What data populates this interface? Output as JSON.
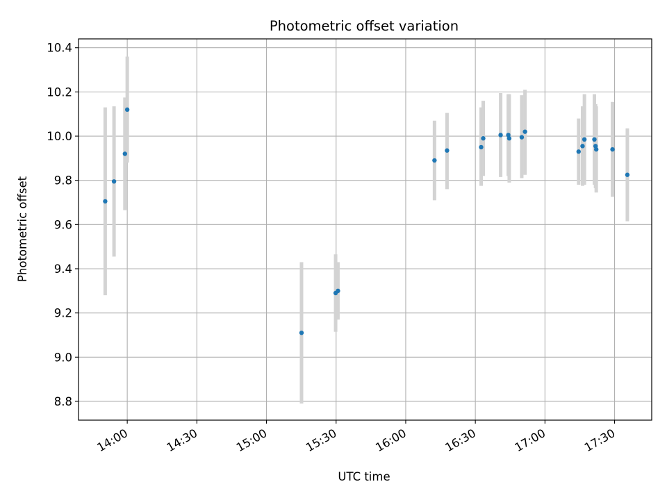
{
  "chart_data": {
    "type": "scatter",
    "title": "Photometric offset variation",
    "xlabel": "UTC time",
    "ylabel": "Photometric offset",
    "grid": true,
    "xlim": [
      "13:39",
      "17:46"
    ],
    "ylim": [
      8.715,
      10.44
    ],
    "xticks": [
      "14:00",
      "14:30",
      "15:00",
      "15:30",
      "16:00",
      "16:30",
      "17:00",
      "17:30"
    ],
    "yticks": [
      "8.8",
      "9.0",
      "9.2",
      "9.4",
      "9.6",
      "9.8",
      "10.0",
      "10.2",
      "10.4"
    ],
    "colors": {
      "points": "#1f77b4",
      "error_bars": "#d3d3d3"
    },
    "points": [
      {
        "x": "13:50.5",
        "y": 9.705,
        "ylow": 9.28,
        "yhigh": 10.13
      },
      {
        "x": "13:54.3",
        "y": 9.795,
        "ylow": 9.455,
        "yhigh": 10.135
      },
      {
        "x": "13:59.0",
        "y": 9.92,
        "ylow": 9.665,
        "yhigh": 10.175
      },
      {
        "x": "14:00.0",
        "y": 10.12,
        "ylow": 9.88,
        "yhigh": 10.36
      },
      {
        "x": "15:15.1",
        "y": 9.11,
        "ylow": 8.79,
        "yhigh": 9.43
      },
      {
        "x": "15:29.8",
        "y": 9.29,
        "ylow": 9.115,
        "yhigh": 9.465
      },
      {
        "x": "15:30.8",
        "y": 9.3,
        "ylow": 9.17,
        "yhigh": 9.43
      },
      {
        "x": "16:12.4",
        "y": 9.89,
        "ylow": 9.71,
        "yhigh": 10.07
      },
      {
        "x": "16:17.8",
        "y": 9.935,
        "ylow": 9.76,
        "yhigh": 10.105
      },
      {
        "x": "16:32.5",
        "y": 9.95,
        "ylow": 9.775,
        "yhigh": 10.13
      },
      {
        "x": "16:33.4",
        "y": 9.99,
        "ylow": 9.82,
        "yhigh": 10.16
      },
      {
        "x": "16:40.9",
        "y": 10.005,
        "ylow": 9.815,
        "yhigh": 10.195
      },
      {
        "x": "16:44.2",
        "y": 10.005,
        "ylow": 9.82,
        "yhigh": 10.19
      },
      {
        "x": "16:44.6",
        "y": 9.99,
        "ylow": 9.79,
        "yhigh": 10.19
      },
      {
        "x": "16:50.0",
        "y": 9.995,
        "ylow": 9.81,
        "yhigh": 10.185
      },
      {
        "x": "16:51.4",
        "y": 10.02,
        "ylow": 9.825,
        "yhigh": 10.21
      },
      {
        "x": "17:14.5",
        "y": 9.93,
        "ylow": 9.78,
        "yhigh": 10.08
      },
      {
        "x": "17:16.2",
        "y": 9.955,
        "ylow": 9.775,
        "yhigh": 10.135
      },
      {
        "x": "17:17.0",
        "y": 9.985,
        "ylow": 9.78,
        "yhigh": 10.19
      },
      {
        "x": "17:21.3",
        "y": 9.985,
        "ylow": 9.78,
        "yhigh": 10.19
      },
      {
        "x": "17:21.8",
        "y": 9.955,
        "ylow": 9.765,
        "yhigh": 10.145
      },
      {
        "x": "17:22.1",
        "y": 9.94,
        "ylow": 9.745,
        "yhigh": 10.135
      },
      {
        "x": "17:29.1",
        "y": 9.94,
        "ylow": 9.725,
        "yhigh": 10.155
      },
      {
        "x": "17:35.5",
        "y": 9.825,
        "ylow": 9.615,
        "yhigh": 10.035
      }
    ]
  }
}
